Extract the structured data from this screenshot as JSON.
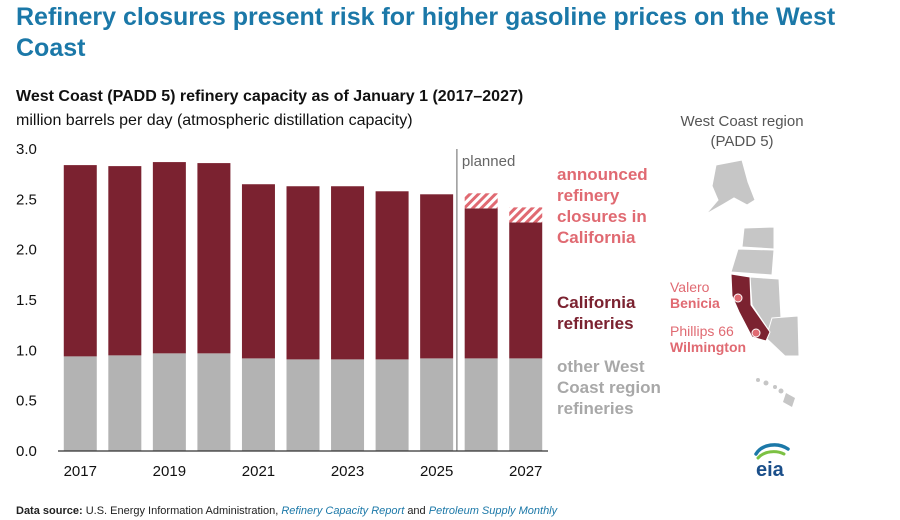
{
  "headline": "Refinery closures present risk for higher gasoline prices on the West Coast",
  "colors": {
    "headline": "#1b78a8",
    "california": "#7b2230",
    "other": "#b3b3b3",
    "closures": "#e06a72",
    "closures_text": "#e06a72",
    "other_text": "#a8a8a8",
    "map_region": "#c6c6c6",
    "map_california": "#7b2230"
  },
  "chart_data": {
    "type": "bar",
    "stacked": true,
    "title": "West Coast (PADD 5) refinery capacity as of January 1 (2017–2027)",
    "subtitle": "million barrels per day (atmospheric distillation capacity)",
    "categories": [
      "2017",
      "2018",
      "2019",
      "2020",
      "2021",
      "2022",
      "2023",
      "2024",
      "2025",
      "2026",
      "2027"
    ],
    "x_tick_labels": [
      "2017",
      "",
      "2019",
      "",
      "2021",
      "",
      "2023",
      "",
      "2025",
      "",
      "2027"
    ],
    "y_ticks": [
      "0.0",
      "0.5",
      "1.0",
      "1.5",
      "2.0",
      "2.5",
      "3.0"
    ],
    "ylim": [
      0,
      3.0
    ],
    "grid": false,
    "series": [
      {
        "name": "other West Coast region refineries",
        "values": [
          0.94,
          0.95,
          0.97,
          0.97,
          0.92,
          0.91,
          0.91,
          0.91,
          0.92,
          0.92,
          0.92
        ]
      },
      {
        "name": "California refineries",
        "values": [
          1.9,
          1.88,
          1.9,
          1.89,
          1.73,
          1.72,
          1.72,
          1.67,
          1.63,
          1.49,
          1.35
        ]
      },
      {
        "name": "announced refinery closures in California",
        "values": [
          0,
          0,
          0,
          0,
          0,
          0,
          0,
          0,
          0,
          0.15,
          0.15
        ]
      }
    ],
    "planned_label": "planned",
    "planned_start_index": 9
  },
  "legend": {
    "closures": "announced refinery closures in California",
    "california": "California refineries",
    "other": "other West Coast region refineries"
  },
  "map": {
    "title": "West Coast region (PADD 5)",
    "cities": [
      {
        "company": "Valero",
        "city": "Benicia"
      },
      {
        "company": "Phillips 66",
        "city": "Wilmington"
      }
    ]
  },
  "footer": {
    "label": "Data source:",
    "text1": "U.S. Energy Information Administration,",
    "link1": "Refinery Capacity Report",
    "and": "and",
    "link2": "Petroleum Supply Monthly"
  },
  "logo": "eia"
}
